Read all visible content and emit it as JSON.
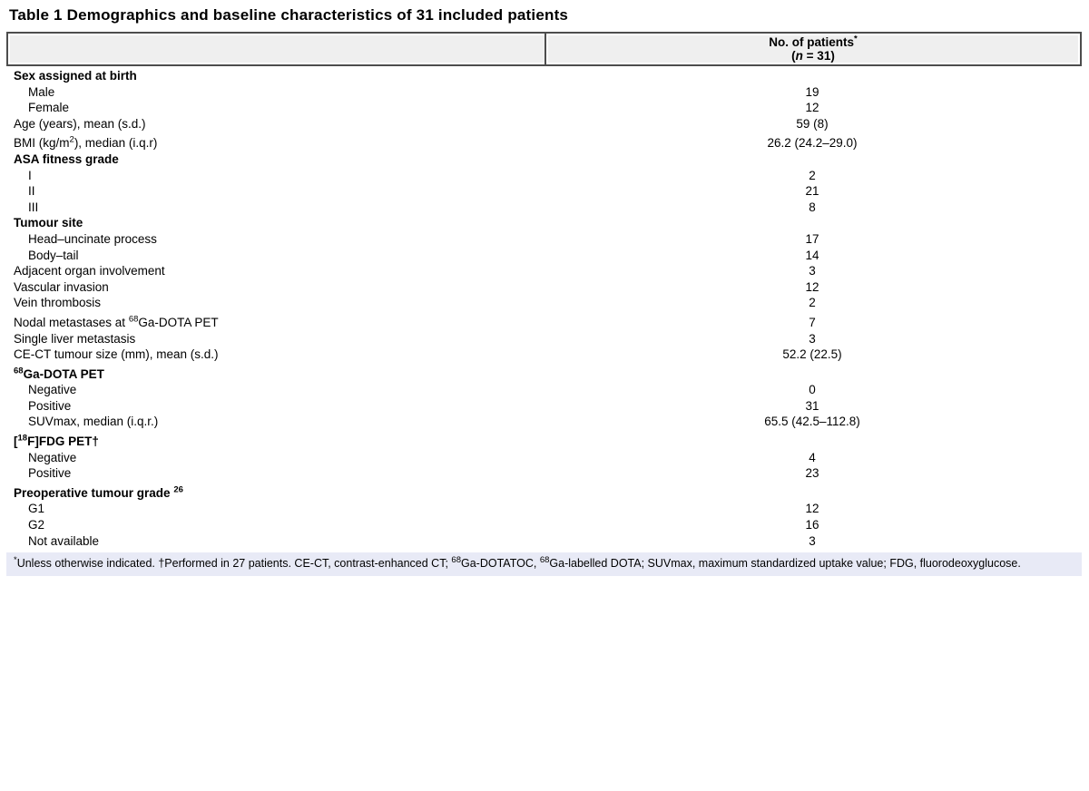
{
  "title": "Table 1 Demographics and baseline characteristics of 31 included patients",
  "colors": {
    "header_bg": "#efefef",
    "table_border": "#4d4d4d",
    "footnote_bg": "#e8eaf6",
    "text": "#000000"
  },
  "header": {
    "label_column": "",
    "value_column_line1_parts": [
      {
        "t": "No. of patients"
      },
      {
        "t": "*",
        "sup": true
      }
    ],
    "value_column_line2_parts": [
      {
        "t": "("
      },
      {
        "t": "n",
        "i": true
      },
      {
        "t": " = 31)"
      }
    ]
  },
  "rows": [
    {
      "style": "section",
      "label": "Sex assigned at birth",
      "value": ""
    },
    {
      "style": "indent",
      "label": "Male",
      "value": "19"
    },
    {
      "style": "indent",
      "label": "Female",
      "value": "12"
    },
    {
      "style": "item",
      "label": "Age (years), mean (s.d.)",
      "value": "59 (8)"
    },
    {
      "style": "item",
      "label_parts": [
        {
          "t": "BMI (kg/m"
        },
        {
          "t": "2",
          "sup": true
        },
        {
          "t": "), median (i.q.r)"
        }
      ],
      "value": "26.2 (24.2–29.0)"
    },
    {
      "style": "section",
      "label": "ASA fitness grade",
      "value": ""
    },
    {
      "style": "indent",
      "label": "I",
      "value": "2"
    },
    {
      "style": "indent",
      "label": "II",
      "value": "21"
    },
    {
      "style": "indent",
      "label": "III",
      "value": "8"
    },
    {
      "style": "section",
      "label": "Tumour site",
      "value": ""
    },
    {
      "style": "indent",
      "label": "Head–uncinate process",
      "value": "17"
    },
    {
      "style": "indent",
      "label": "Body–tail",
      "value": "14"
    },
    {
      "style": "item",
      "label": "Adjacent organ involvement",
      "value": "3"
    },
    {
      "style": "item",
      "label": "Vascular invasion",
      "value": "12"
    },
    {
      "style": "item",
      "label": "Vein thrombosis",
      "value": "2"
    },
    {
      "style": "item",
      "label_parts": [
        {
          "t": "Nodal metastases at "
        },
        {
          "t": "68",
          "sup": true
        },
        {
          "t": "Ga-DOTA PET"
        }
      ],
      "value": "7"
    },
    {
      "style": "item",
      "label": "Single liver metastasis",
      "value": "3"
    },
    {
      "style": "item",
      "label": "CE-CT tumour size (mm), mean (s.d.)",
      "value": "52.2 (22.5)"
    },
    {
      "style": "section",
      "label_parts": [
        {
          "t": "68",
          "sup": true
        },
        {
          "t": "Ga-DOTA PET"
        }
      ],
      "value": ""
    },
    {
      "style": "indent",
      "label": "Negative",
      "value": "0"
    },
    {
      "style": "indent",
      "label": "Positive",
      "value": "31"
    },
    {
      "style": "indent",
      "label": "SUVmax, median (i.q.r.)",
      "value": "65.5 (42.5–112.8)"
    },
    {
      "style": "section",
      "label_parts": [
        {
          "t": "["
        },
        {
          "t": "18",
          "sup": true
        },
        {
          "t": "F]FDG PET†"
        }
      ],
      "value": ""
    },
    {
      "style": "indent",
      "label": "Negative",
      "value": "4"
    },
    {
      "style": "indent",
      "label": "Positive",
      "value": "23"
    },
    {
      "style": "section",
      "label_parts": [
        {
          "t": "Preoperative tumour grade "
        },
        {
          "t": "26",
          "sup": true
        }
      ],
      "value": ""
    },
    {
      "style": "indent",
      "label": "G1",
      "value": "12"
    },
    {
      "style": "indent",
      "label": "G2",
      "value": "16"
    },
    {
      "style": "indent",
      "label": "Not available",
      "value": "3"
    }
  ],
  "footnote_parts": [
    {
      "t": "*",
      "sup": true
    },
    {
      "t": "Unless otherwise indicated. †Performed in 27 patients. CE-CT, contrast-enhanced CT; "
    },
    {
      "t": "68",
      "sup": true
    },
    {
      "t": "Ga-DOTATOC, "
    },
    {
      "t": "68",
      "sup": true
    },
    {
      "t": "Ga-labelled DOTA; SUVmax, maximum standardized uptake value; FDG, fluorodeoxyglucose."
    }
  ]
}
